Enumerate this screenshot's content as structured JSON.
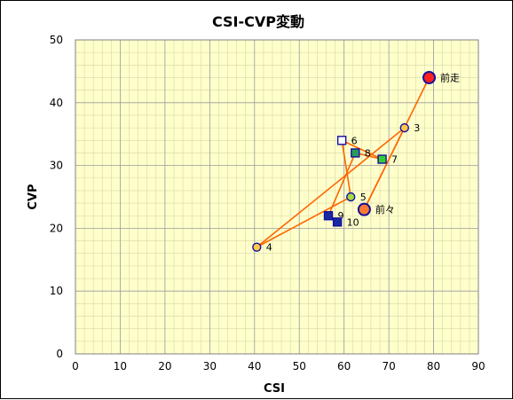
{
  "chart_data": {
    "type": "scatter",
    "title": "CSI-CVP変動",
    "xlabel": "CSI",
    "ylabel": "CVP",
    "xlim": [
      0,
      90
    ],
    "ylim": [
      0,
      50
    ],
    "x_ticks": [
      0,
      10,
      20,
      30,
      40,
      50,
      60,
      70,
      80,
      90
    ],
    "y_ticks": [
      0,
      10,
      20,
      30,
      40,
      50
    ],
    "grid": true,
    "line_color": "#ff6600",
    "plot_background": "#ffffcc",
    "points": [
      {
        "label": "前走",
        "x": 79,
        "y": 44,
        "marker": "circle",
        "fill": "#ff2020",
        "stroke": "#1010a0",
        "size": "large"
      },
      {
        "label": "前々",
        "x": 64.5,
        "y": 23,
        "marker": "circle",
        "fill": "#ff7a30",
        "stroke": "#1010a0",
        "size": "large"
      },
      {
        "label": "3",
        "x": 73.5,
        "y": 36,
        "marker": "circle",
        "fill": "#ffc84a",
        "stroke": "#1010a0",
        "size": "small"
      },
      {
        "label": "4",
        "x": 40.5,
        "y": 17,
        "marker": "circle",
        "fill": "#ffc84a",
        "stroke": "#1010a0",
        "size": "small"
      },
      {
        "label": "5",
        "x": 61.5,
        "y": 25,
        "marker": "circle",
        "fill": "#a8d848",
        "stroke": "#1010a0",
        "size": "small"
      },
      {
        "label": "6",
        "x": 59.5,
        "y": 34,
        "marker": "square",
        "fill": "#ffffff",
        "stroke": "#1010a0",
        "size": "small"
      },
      {
        "label": "7",
        "x": 68.5,
        "y": 31,
        "marker": "square",
        "fill": "#33cc33",
        "stroke": "#1010a0",
        "size": "small"
      },
      {
        "label": "8",
        "x": 62.5,
        "y": 32,
        "marker": "square",
        "fill": "#2a9a5a",
        "stroke": "#1010a0",
        "size": "small"
      },
      {
        "label": "9",
        "x": 56.5,
        "y": 22,
        "marker": "square",
        "fill": "#1a2aa0",
        "stroke": "#1010a0",
        "size": "small"
      },
      {
        "label": "10",
        "x": 58.5,
        "y": 21,
        "marker": "square",
        "fill": "#1a2aa0",
        "stroke": "#1010a0",
        "size": "small"
      }
    ]
  }
}
